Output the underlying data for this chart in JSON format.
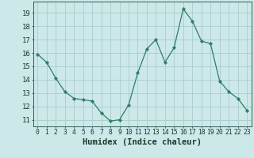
{
  "x": [
    0,
    1,
    2,
    3,
    4,
    5,
    6,
    7,
    8,
    9,
    10,
    11,
    12,
    13,
    14,
    15,
    16,
    17,
    18,
    19,
    20,
    21,
    22,
    23
  ],
  "y": [
    15.9,
    15.3,
    14.1,
    13.1,
    12.6,
    12.5,
    12.4,
    11.5,
    10.9,
    11.0,
    12.1,
    14.5,
    16.3,
    17.0,
    15.3,
    16.4,
    19.3,
    18.4,
    16.9,
    16.7,
    13.9,
    13.1,
    12.6,
    11.7
  ],
  "line_color": "#2e7d6a",
  "marker": "D",
  "marker_size": 2.2,
  "bg_color": "#cce8e8",
  "grid_color": "#aacccc",
  "xlabel": "Humidex (Indice chaleur)",
  "ylabel": "",
  "xlim": [
    -0.5,
    23.5
  ],
  "ylim": [
    10.5,
    19.85
  ],
  "yticks": [
    11,
    12,
    13,
    14,
    15,
    16,
    17,
    18,
    19
  ],
  "xticks": [
    0,
    1,
    2,
    3,
    4,
    5,
    6,
    7,
    8,
    9,
    10,
    11,
    12,
    13,
    14,
    15,
    16,
    17,
    18,
    19,
    20,
    21,
    22,
    23
  ],
  "tick_color": "#2e5e50",
  "label_color": "#1a3a2a",
  "font": "monospace",
  "xlabel_fontsize": 7.5,
  "ytick_fontsize": 6.5,
  "xtick_fontsize": 5.8
}
